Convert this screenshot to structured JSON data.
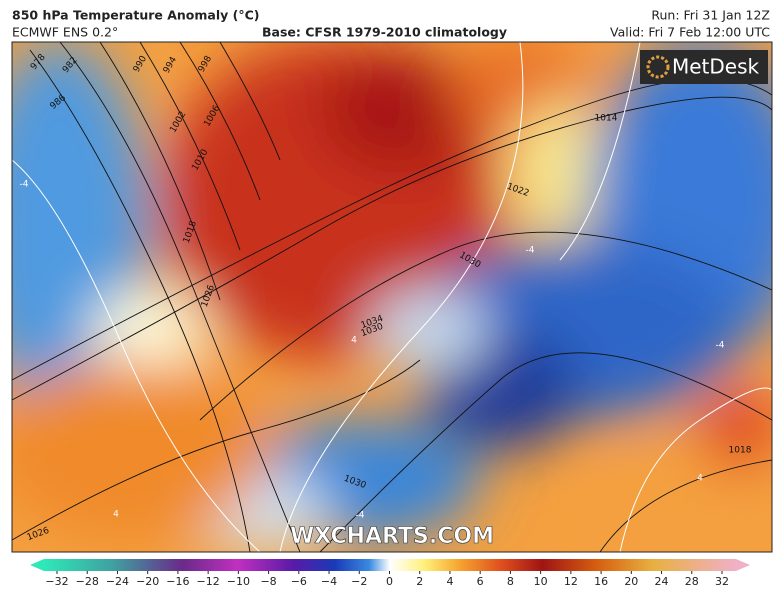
{
  "header": {
    "title": "850 hPa Temperature Anomaly (°C)",
    "model": "ECMWF ENS 0.2°",
    "base": "Base: CFSR 1979-2010 climatology",
    "run": "Run: Fri 31 Jan 12Z",
    "valid": "Valid: Fri 7 Feb 12:00 UTC"
  },
  "logo": "MetDesk",
  "watermark": "WXCHARTS.COM",
  "isobar_labels": [
    "978",
    "982",
    "986",
    "990",
    "994",
    "998",
    "1002",
    "1006",
    "1010",
    "1014",
    "1018",
    "1026",
    "1030",
    "1030",
    "1034",
    "1022",
    "1014",
    "1018",
    "1030",
    "1026"
  ],
  "contour_labels": [
    "-4",
    "-4",
    "4",
    "-4",
    "4",
    "-4",
    "4"
  ],
  "colorbar": {
    "ticks": [
      "−32",
      "−28",
      "−24",
      "−20",
      "−16",
      "−12",
      "−10",
      "−8",
      "−6",
      "−4",
      "−2",
      "0",
      "2",
      "4",
      "6",
      "8",
      "10",
      "12",
      "16",
      "20",
      "24",
      "28",
      "32"
    ]
  }
}
